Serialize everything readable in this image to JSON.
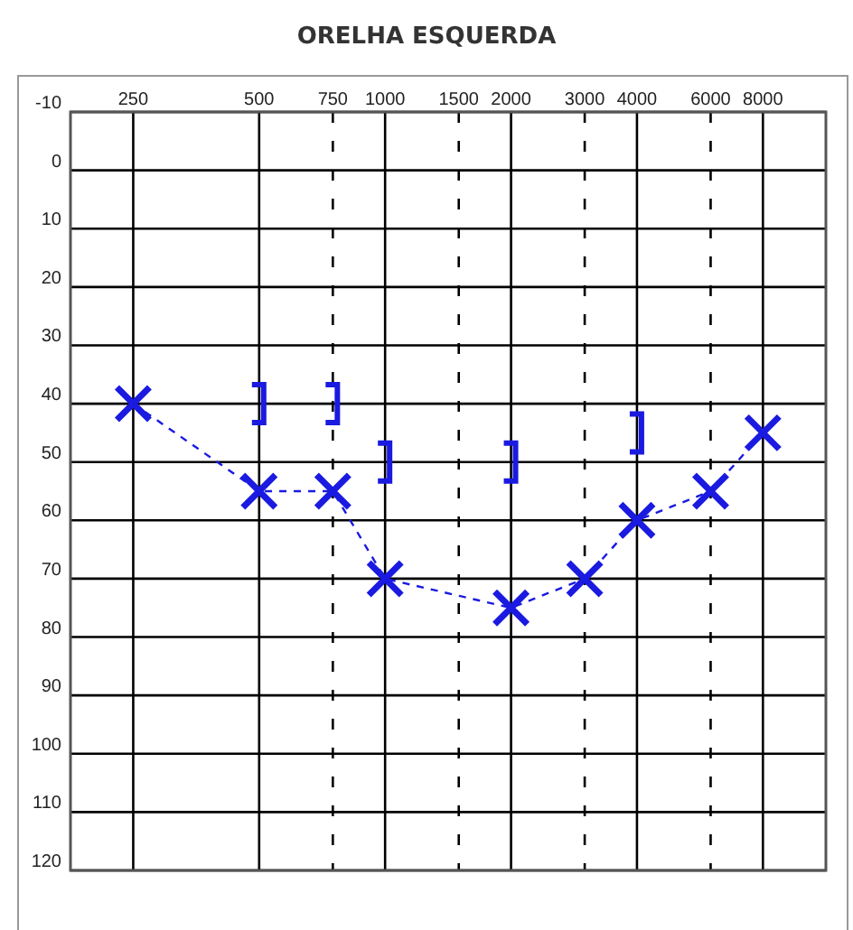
{
  "chart_data": {
    "type": "line",
    "title": "ORELHA ESQUERDA",
    "log": "x",
    "grid": true,
    "xlim": [
      177,
      11314
    ],
    "xticks": [
      250,
      500,
      750,
      1000,
      1500,
      2000,
      3000,
      4000,
      6000,
      8000
    ],
    "ylim": [
      120,
      -10
    ],
    "yticks": [
      -10,
      0,
      10,
      20,
      30,
      40,
      50,
      60,
      70,
      80,
      90,
      100,
      110,
      120
    ],
    "series": [
      {
        "type": "line",
        "color": "#1a1ae0",
        "marker": "cross",
        "line_style": "dashed",
        "x": [
          250,
          500,
          750,
          1000,
          2000,
          3000,
          4000,
          6000,
          8000
        ],
        "values": [
          40,
          55,
          55,
          70,
          75,
          70,
          60,
          55,
          45
        ]
      },
      {
        "type": "scatter",
        "color": "#1a1ae0",
        "x": [
          500,
          750,
          1000,
          2000,
          4000
        ],
        "values": [
          40,
          40,
          50,
          50,
          45
        ]
      }
    ]
  }
}
